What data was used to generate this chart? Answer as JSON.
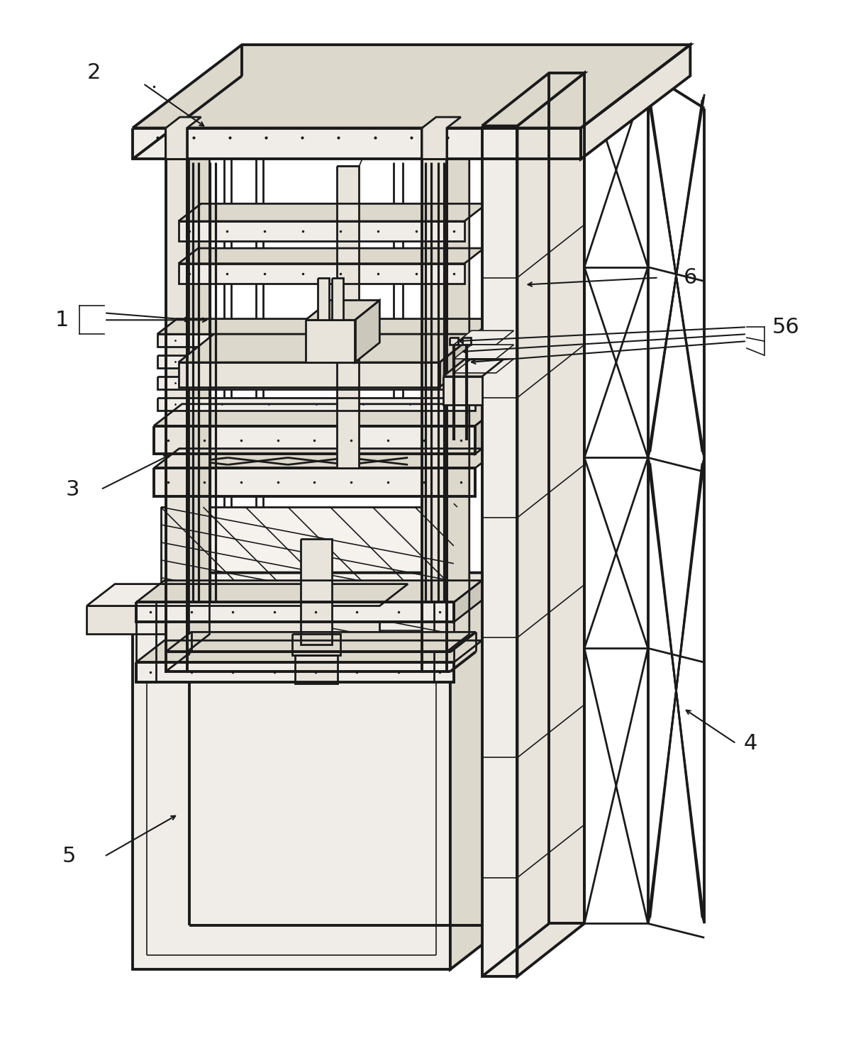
{
  "bg": "#ffffff",
  "lc": "#1a1a1a",
  "lc_light": "#555555",
  "fill_light": "#f0ede8",
  "fill_mid": "#e8e4dc",
  "fill_dark": "#ddd8cc",
  "fill_darker": "#ccc7bb",
  "lw_main": 2.0,
  "lw_thick": 2.8,
  "lw_thin": 1.2,
  "fig_w": 12.24,
  "fig_h": 14.78,
  "label_fs": 22,
  "arrow_lw": 1.5,
  "dot_size": 3.0
}
